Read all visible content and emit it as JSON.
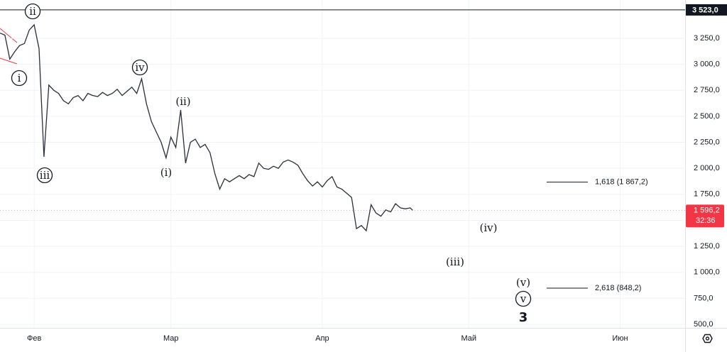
{
  "chart_data": {
    "type": "line",
    "color": "#2a2e39",
    "x": [
      25,
      26,
      27,
      28,
      29,
      30,
      31,
      32,
      33,
      34,
      35,
      36,
      37,
      38,
      39,
      40,
      41,
      42,
      43,
      44,
      45,
      46,
      47,
      48,
      49,
      50,
      51,
      52,
      53,
      54,
      55,
      56,
      57,
      58,
      59,
      60,
      61,
      62,
      63,
      64,
      65,
      66,
      67,
      68,
      69,
      70,
      71,
      72,
      73,
      74,
      75,
      76,
      77,
      78,
      79,
      80,
      81,
      82,
      83,
      84,
      85,
      86,
      87,
      88,
      89,
      90,
      91,
      92,
      93,
      94,
      95,
      96,
      97,
      98,
      99,
      100,
      101,
      102,
      103,
      104,
      105,
      106,
      107,
      108,
      109,
      109.5
    ],
    "series": [
      {
        "values": [
          3300,
          3280,
          3050,
          3120,
          3180,
          3200,
          3330,
          3380,
          3150,
          2110,
          2800,
          2750,
          2720,
          2650,
          2620,
          2680,
          2700,
          2650,
          2720,
          2700,
          2690,
          2730,
          2700,
          2720,
          2760,
          2700,
          2740,
          2780,
          2720,
          2860,
          2620,
          2450,
          2350,
          2250,
          2100,
          2300,
          2200,
          2560,
          2050,
          2250,
          2280,
          2200,
          2230,
          2150,
          1950,
          1800,
          1900,
          1870,
          1900,
          1930,
          1900,
          1940,
          1920,
          2050,
          2000,
          1990,
          2020,
          2000,
          2060,
          2080,
          2060,
          2030,
          1950,
          1880,
          1830,
          1870,
          1820,
          1880,
          1920,
          1820,
          1800,
          1760,
          1720,
          1420,
          1450,
          1400,
          1650,
          1570,
          1540,
          1600,
          1580,
          1660,
          1620,
          1610,
          1620,
          1596.2
        ]
      }
    ],
    "xlim": [
      25,
      165.3
    ],
    "xticks": [
      {
        "value": 32,
        "label": "Фев"
      },
      {
        "value": 60,
        "label": "Мар"
      },
      {
        "value": 91,
        "label": "Апр"
      },
      {
        "value": 121,
        "label": "Май"
      },
      {
        "value": 152,
        "label": "Июн"
      }
    ],
    "ylim": [
      466,
      3618
    ],
    "yticks": [
      {
        "value": 500,
        "label": "500,0"
      },
      {
        "value": 750,
        "label": "750,0"
      },
      {
        "value": 1000,
        "label": "1 000,0"
      },
      {
        "value": 1250,
        "label": "1 250,0"
      },
      {
        "value": 1500,
        "label": "1 500,0"
      },
      {
        "value": 1750,
        "label": "1 750,0"
      },
      {
        "value": 2000,
        "label": "2 000,0"
      },
      {
        "value": 2250,
        "label": "2 250,0"
      },
      {
        "value": 2500,
        "label": "2 500,0"
      },
      {
        "value": 2750,
        "label": "2 750,0"
      },
      {
        "value": 3000,
        "label": "3 000,0"
      },
      {
        "value": 3250,
        "label": "3 250,0"
      }
    ],
    "grid": true,
    "high_line": {
      "value": 3523,
      "label": "3 523,0"
    },
    "last_price": {
      "value": 1596.2,
      "label": "1 596,2",
      "color": "#f23645"
    },
    "countdown": "32:36",
    "fib_levels": [
      {
        "value": 1867.2,
        "label": "1,618 (1 867,2)"
      },
      {
        "value": 848.2,
        "label": "2,618 (848,2)"
      }
    ],
    "annotations": [
      {
        "label": "ii",
        "circled": true
      },
      {
        "label": "i",
        "circled": true
      },
      {
        "label": "iii",
        "circled": true
      },
      {
        "label": "iv",
        "circled": true
      },
      {
        "label": "(ii)",
        "circled": false
      },
      {
        "label": "(i)",
        "circled": false
      },
      {
        "label": "(iv)",
        "circled": false
      },
      {
        "label": "(iii)",
        "circled": false
      },
      {
        "label": "(v)",
        "circled": false
      },
      {
        "label": "v",
        "circled": true
      },
      {
        "label": "3",
        "circled": false
      }
    ]
  }
}
